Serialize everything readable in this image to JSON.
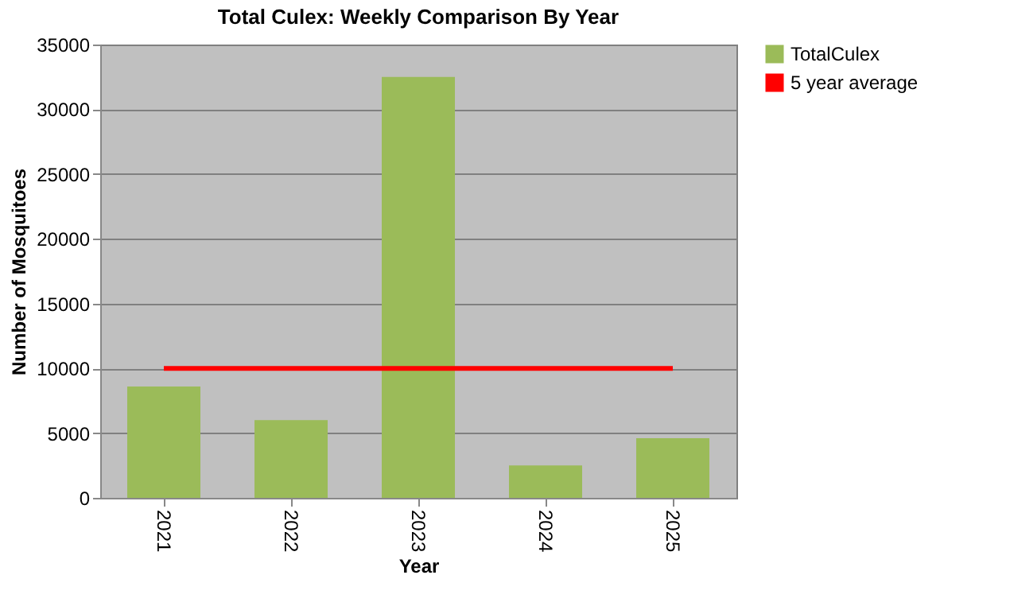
{
  "chart_data": {
    "type": "bar",
    "title": "Total Culex: Weekly Comparison By Year",
    "xlabel": "Year",
    "ylabel": "Number of Mosquitoes",
    "categories": [
      "2021",
      "2022",
      "2023",
      "2024",
      "2025"
    ],
    "series": [
      {
        "name": "TotalCulex",
        "color": "#9bbb59",
        "values": [
          8600,
          6000,
          32500,
          2500,
          4600
        ]
      },
      {
        "name": "5 year average",
        "type": "line",
        "color": "#ff0000",
        "values": [
          10000,
          10000,
          10000,
          10000,
          10000
        ]
      }
    ],
    "ylim": [
      0,
      35000
    ],
    "yticks": [
      0,
      5000,
      10000,
      15000,
      20000,
      25000,
      30000,
      35000
    ],
    "grid": "y",
    "legend": "right"
  }
}
